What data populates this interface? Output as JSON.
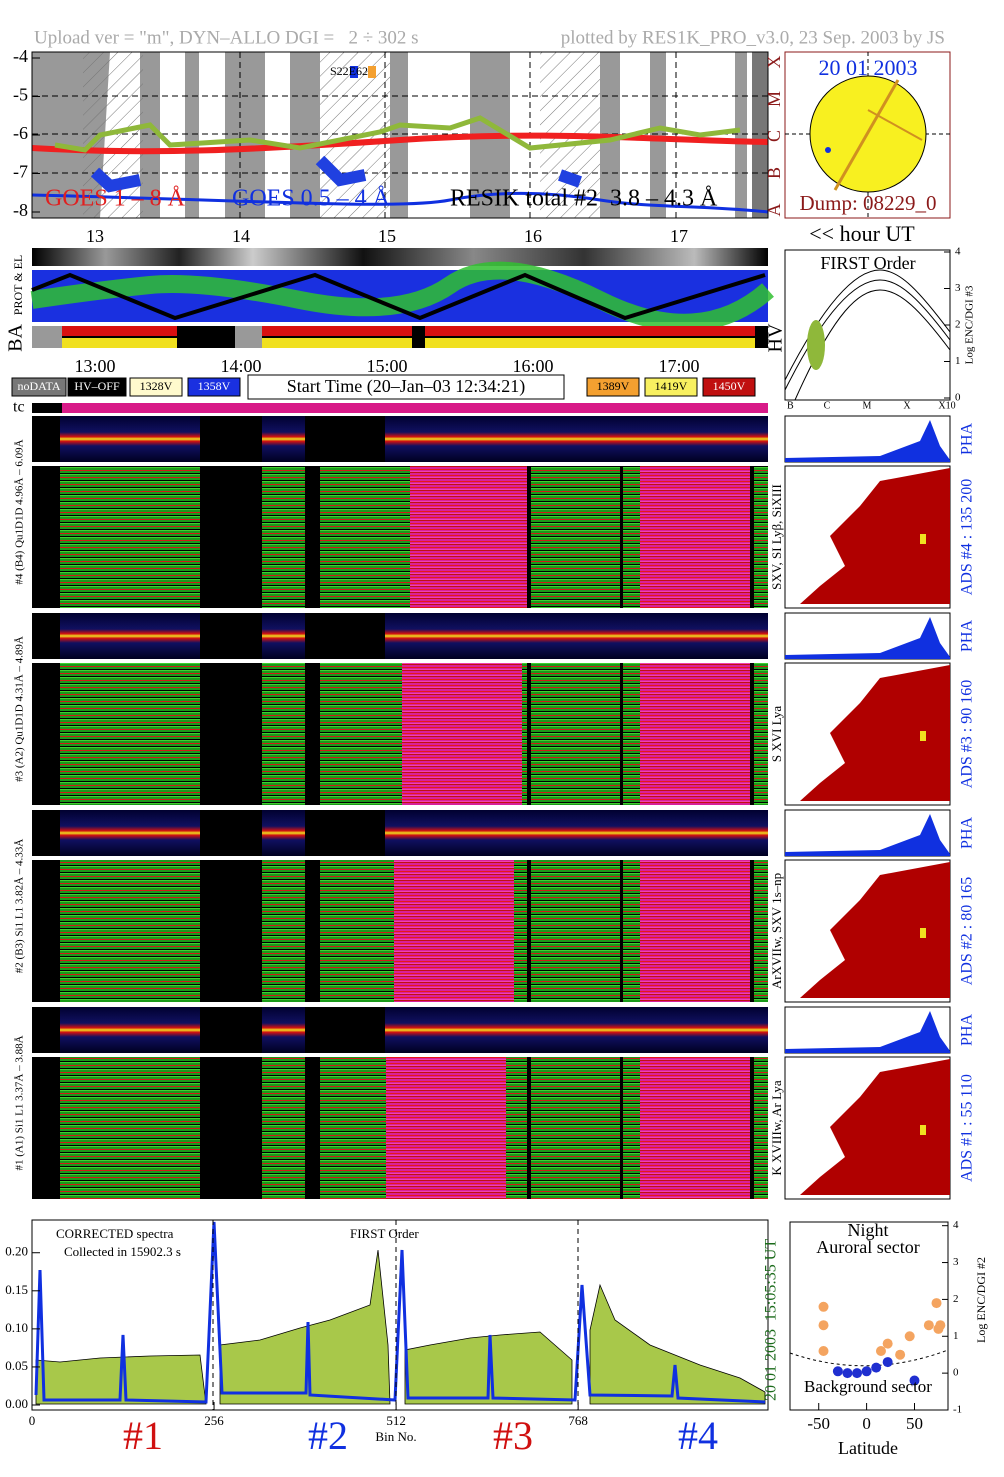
{
  "header": {
    "upload": "Upload ver = \"m\", DYN–ALLO DGI =   2 ÷ 302 s",
    "plotted": "plotted by RES1K_PRO_v3.0, 23 Sep. 2003 by JS"
  },
  "goes": {
    "yticks": [
      -4,
      -5,
      -6,
      -7,
      -8
    ],
    "classes": [
      "X",
      "M",
      "C",
      "B",
      "A"
    ],
    "legend": [
      "GOES 1 – 8 Å",
      "GOES 0.5 – 4 Å",
      "RESIK total #2  3.8 – 4.3 Å"
    ],
    "annotation": "S22E62"
  },
  "sun": {
    "date": "20 01 2003",
    "dump": "Dump: 08229_0"
  },
  "hours": {
    "ticks": [
      13,
      14,
      15,
      16,
      17
    ],
    "unit": "<< hour UT"
  },
  "orbit": {
    "labels": [
      "PROT & EL",
      "BA",
      "HV"
    ]
  },
  "first_order": {
    "title": "FIRST Order",
    "yticks": [
      0,
      1,
      2,
      3,
      4
    ],
    "ylabel": "Log ENC/DGI #3",
    "xticks": [
      "B",
      "C",
      "M",
      "X",
      "X10"
    ]
  },
  "times": [
    "13:00",
    "14:00",
    "15:00",
    "16:00",
    "17:00"
  ],
  "legend": {
    "left": [
      "noDATA",
      "HV–OFF",
      "1328V",
      "1358V"
    ],
    "start": "Start Time (20–Jan–03 12:34:21)",
    "right": [
      "1389V",
      "1419V",
      "1450V"
    ],
    "tc": "tc"
  },
  "channels": [
    {
      "label": "#4 (B4) Qu1D1D 4.96Å – 6.09Å",
      "pha": "PHA",
      "ads": "ADS #4 :   135 200",
      "lines": "SXV, SI Lyβ, SiXIII"
    },
    {
      "label": "#3 (A2) Qu1D1D 4.31Å – 4.89Å",
      "pha": "PHA",
      "ads": "ADS #3 :   90 160",
      "lines": "S XVI Lya"
    },
    {
      "label": "#2 (B3) Si1 L1 3.82Å – 4.33Å",
      "pha": "PHA",
      "ads": "ADS #2 :   80 165",
      "lines": "ArXVIIw, SXV 1s–np"
    },
    {
      "label": "#1 (A1) Si1 L1 3.37Å – 3.88Å",
      "pha": "PHA",
      "ads": "ADS #1 :   55 110",
      "lines": "K XVIIIw, Ar Lya"
    }
  ],
  "spectrum": {
    "note1": "CORRECTED spectra",
    "note2": "Collected in 15902.3 s",
    "order": "FIRST Order",
    "xlim": [
      0,
      1035
    ],
    "xticks": [
      0,
      256,
      512,
      768
    ],
    "xlabel": "Bin No.",
    "ylim": [
      0,
      0.243
    ],
    "yticks": [
      {
        "value": 0,
        "label": "0.00"
      },
      {
        "value": 0.05,
        "label": "0.05"
      },
      {
        "value": 0.1,
        "label": "0.10"
      },
      {
        "value": 0.15,
        "label": "0.15"
      },
      {
        "value": 0.2,
        "label": "0.20"
      }
    ],
    "time": "15:05:35 UT",
    "date": "20 01 2003",
    "channels": [
      "#1",
      "#2",
      "#3",
      "#4"
    ]
  },
  "latitude": {
    "title1": "Night",
    "title2": "Auroral sector",
    "title3": "Background sector",
    "xlabel": "Latitude",
    "ylabel": "Log ENC/DGI #2",
    "xlim": [
      -80,
      85
    ],
    "ylim": [
      -1,
      4.1
    ],
    "xticks": [
      -50,
      0,
      50
    ],
    "yticks": [
      -1,
      0,
      1,
      2,
      3,
      4
    ],
    "series": [
      {
        "color": "#f4a460",
        "x": [
          -45,
          -45,
          -45,
          15,
          22,
          35,
          45,
          65,
          73,
          75,
          77
        ],
        "values": [
          1.8,
          1.3,
          0.6,
          0.6,
          0.8,
          0.5,
          1.0,
          1.3,
          1.9,
          1.2,
          1.3
        ]
      },
      {
        "color": "#1f2fd0",
        "x": [
          -30,
          -20,
          -10,
          0,
          10,
          22,
          50
        ],
        "values": [
          0.05,
          0.0,
          0.0,
          0.05,
          0.15,
          0.3,
          -0.2
        ]
      }
    ]
  }
}
